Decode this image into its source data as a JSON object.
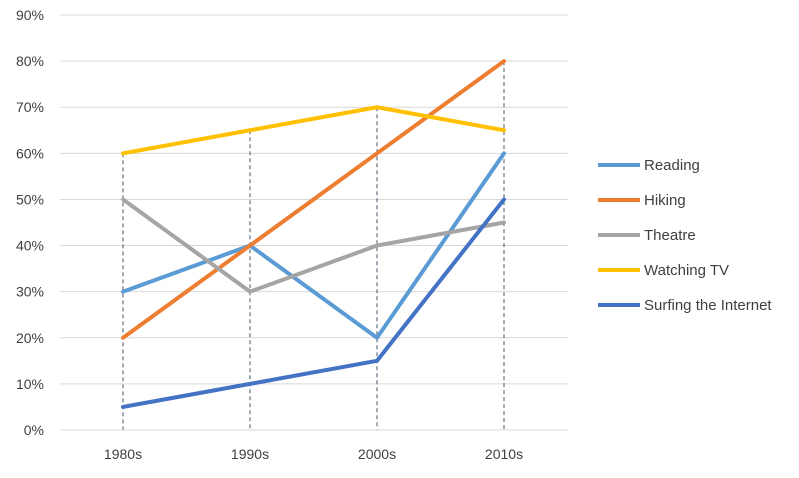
{
  "chart_data": {
    "type": "line",
    "categories": [
      "1980s",
      "1990s",
      "2000s",
      "2010s"
    ],
    "series": [
      {
        "name": "Reading",
        "values": [
          30,
          40,
          20,
          60
        ],
        "color": "#5B9BD5"
      },
      {
        "name": "Hiking",
        "values": [
          20,
          40,
          60,
          80
        ],
        "color": "#ED7D31"
      },
      {
        "name": "Theatre",
        "values": [
          50,
          30,
          40,
          45
        ],
        "color": "#A5A5A5"
      },
      {
        "name": "Watching TV",
        "values": [
          60,
          65,
          70,
          65
        ],
        "color": "#FFC000"
      },
      {
        "name": "Surfing the Internet",
        "values": [
          5,
          10,
          15,
          50
        ],
        "color": "#4472C4"
      }
    ],
    "y_ticks": [
      "0%",
      "10%",
      "20%",
      "30%",
      "40%",
      "50%",
      "60%",
      "70%",
      "80%",
      "90%"
    ],
    "ylim": [
      0,
      90
    ],
    "ytick_step": 10,
    "y_unit": "%",
    "grid": "horizontal",
    "drop_lines": true,
    "legend_position": "right"
  }
}
